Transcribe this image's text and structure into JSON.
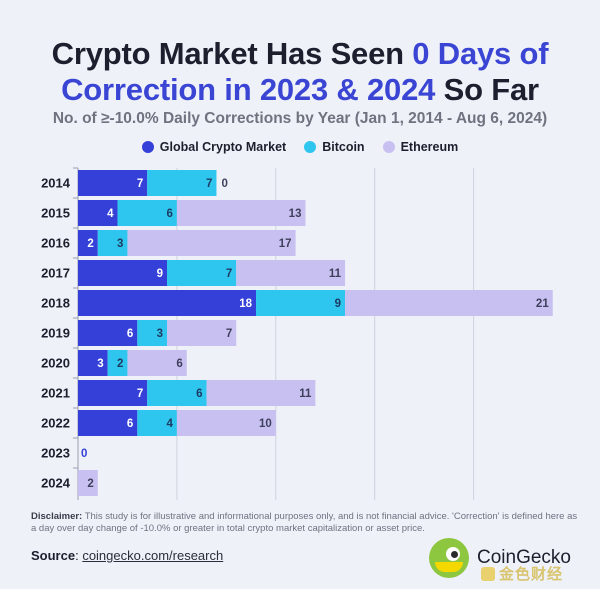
{
  "header": {
    "title_line1_a": "Crypto Market Has Seen ",
    "title_line1_b": "0 Days of",
    "title_line2_a": "Correction in 2023 & 2024",
    "title_line2_b": " So Far",
    "subtitle": "No. of ≥-10.0% Daily Corrections by Year (Jan 1, 2014 - Aug 6, 2024)"
  },
  "colors": {
    "accent": "#3a45d4",
    "global": "#3540d8",
    "bitcoin": "#2ec6ee",
    "ethereum": "#c8c0f1",
    "grid": "#cfd3de"
  },
  "chart_data": {
    "type": "bar",
    "orientation": "horizontal",
    "stacked": true,
    "categories": [
      "2014",
      "2015",
      "2016",
      "2017",
      "2018",
      "2019",
      "2020",
      "2021",
      "2022",
      "2023",
      "2024"
    ],
    "series": [
      {
        "name": "Global Crypto Market",
        "values": [
          7,
          4,
          2,
          9,
          18,
          6,
          3,
          7,
          6,
          0,
          0
        ]
      },
      {
        "name": "Bitcoin",
        "values": [
          7,
          6,
          3,
          7,
          9,
          3,
          2,
          6,
          4,
          0,
          0
        ]
      },
      {
        "name": "Ethereum",
        "values": [
          0,
          13,
          17,
          11,
          21,
          7,
          6,
          11,
          10,
          0,
          2
        ]
      }
    ],
    "xlim": [
      0,
      48
    ],
    "grid": true,
    "legend": "top-center"
  },
  "footer": {
    "disclaimer_label": "Disclaimer:",
    "disclaimer_text": " This study is for illustrative and informational purposes only, and is not financial advice. 'Correction' is defined here as a day over day change of -10.0% or greater in total crypto market capitalization or asset price.",
    "source_label": "Source",
    "source_sep": ": ",
    "source_url": "coingecko.com/research",
    "brand": "CoinGecko",
    "watermark": "金色财经"
  }
}
